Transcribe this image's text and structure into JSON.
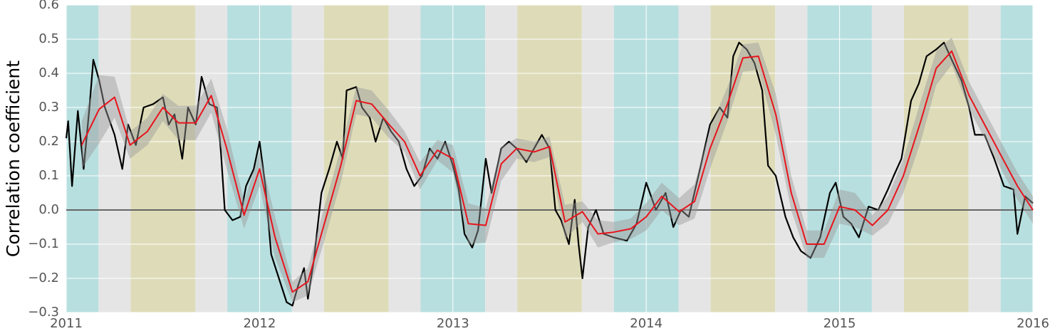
{
  "chart_data": {
    "type": "line",
    "y_label": "Correlation coefficient",
    "xlim": [
      2011,
      2016
    ],
    "xticks": [
      2011,
      2012,
      2013,
      2014,
      2015,
      2016
    ],
    "ylim": [
      -0.3,
      0.6
    ],
    "yticks": [
      {
        "value": -0.3,
        "label": "−0.3"
      },
      {
        "value": -0.2,
        "label": "−0.2"
      },
      {
        "value": -0.1,
        "label": "−0.1"
      },
      {
        "value": 0,
        "label": "0.0"
      },
      {
        "value": 0.1,
        "label": "0.1"
      },
      {
        "value": 0.2,
        "label": "0.2"
      },
      {
        "value": 0.3,
        "label": "0.3"
      },
      {
        "value": 0.4,
        "label": "0.4"
      },
      {
        "value": 0.5,
        "label": "0.5"
      },
      {
        "value": 0.6,
        "label": "0.6"
      }
    ],
    "grid": true,
    "reference_line": 0,
    "bands": [
      {
        "start": 2011,
        "end": 2011.167,
        "color": "#b8dfdf"
      },
      {
        "start": 2011.167,
        "end": 2011.333,
        "color": "#e5e5e5"
      },
      {
        "start": 2011.333,
        "end": 2011.667,
        "color": "#dedcb8"
      },
      {
        "start": 2011.667,
        "end": 2011.833,
        "color": "#e5e5e5"
      },
      {
        "start": 2011.833,
        "end": 2012.167,
        "color": "#b8dfdf"
      },
      {
        "start": 2012.167,
        "end": 2012.333,
        "color": "#e5e5e5"
      },
      {
        "start": 2012.333,
        "end": 2012.667,
        "color": "#dedcb8"
      },
      {
        "start": 2012.667,
        "end": 2012.833,
        "color": "#e5e5e5"
      },
      {
        "start": 2012.833,
        "end": 2013.167,
        "color": "#b8dfdf"
      },
      {
        "start": 2013.167,
        "end": 2013.333,
        "color": "#e5e5e5"
      },
      {
        "start": 2013.333,
        "end": 2013.667,
        "color": "#dedcb8"
      },
      {
        "start": 2013.667,
        "end": 2013.833,
        "color": "#e5e5e5"
      },
      {
        "start": 2013.833,
        "end": 2014.167,
        "color": "#b8dfdf"
      },
      {
        "start": 2014.167,
        "end": 2014.333,
        "color": "#e5e5e5"
      },
      {
        "start": 2014.333,
        "end": 2014.667,
        "color": "#dedcb8"
      },
      {
        "start": 2014.667,
        "end": 2014.833,
        "color": "#e5e5e5"
      },
      {
        "start": 2014.833,
        "end": 2015.167,
        "color": "#b8dfdf"
      },
      {
        "start": 2015.167,
        "end": 2015.333,
        "color": "#e5e5e5"
      },
      {
        "start": 2015.333,
        "end": 2015.667,
        "color": "#dedcb8"
      },
      {
        "start": 2015.667,
        "end": 2015.833,
        "color": "#e5e5e5"
      },
      {
        "start": 2015.833,
        "end": 2016,
        "color": "#b8dfdf"
      }
    ],
    "series": [
      {
        "color": "#000000",
        "x": [
          2011,
          2011.01,
          2011.03,
          2011.06,
          2011.09,
          2011.12,
          2011.14,
          2011.17,
          2011.2,
          2011.25,
          2011.29,
          2011.32,
          2011.36,
          2011.4,
          2011.45,
          2011.5,
          2011.53,
          2011.56,
          2011.6,
          2011.63,
          2011.67,
          2011.7,
          2011.74,
          2011.78,
          2011.8,
          2011.82,
          2011.86,
          2011.9,
          2011.93,
          2011.97,
          2012,
          2012.03,
          2012.06,
          2012.1,
          2012.14,
          2012.17,
          2012.2,
          2012.23,
          2012.25,
          2012.28,
          2012.32,
          2012.36,
          2012.4,
          2012.43,
          2012.45,
          2012.5,
          2012.53,
          2012.57,
          2012.6,
          2012.64,
          2012.68,
          2012.72,
          2012.76,
          2012.8,
          2012.84,
          2012.88,
          2012.92,
          2012.96,
          2013,
          2013.03,
          2013.06,
          2013.1,
          2013.13,
          2013.17,
          2013.2,
          2013.25,
          2013.29,
          2013.33,
          2013.38,
          2013.42,
          2013.46,
          2013.5,
          2013.53,
          2013.56,
          2013.6,
          2013.63,
          2013.65,
          2013.67,
          2013.7,
          2013.74,
          2013.78,
          2013.83,
          2013.9,
          2013.95,
          2014,
          2014.05,
          2014.1,
          2014.14,
          2014.18,
          2014.22,
          2014.27,
          2014.33,
          2014.38,
          2014.42,
          2014.45,
          2014.48,
          2014.52,
          2014.56,
          2014.6,
          2014.63,
          2014.67,
          2014.72,
          2014.76,
          2014.8,
          2014.85,
          2014.9,
          2014.95,
          2014.98,
          2015.02,
          2015.06,
          2015.1,
          2015.15,
          2015.2,
          2015.25,
          2015.28,
          2015.32,
          2015.37,
          2015.41,
          2015.45,
          2015.5,
          2015.54,
          2015.58,
          2015.63,
          2015.67,
          2015.7,
          2015.75,
          2015.8,
          2015.85,
          2015.9,
          2015.92,
          2015.96,
          2016
        ],
        "values": [
          0.21,
          0.26,
          0.07,
          0.29,
          0.12,
          0.3,
          0.44,
          0.38,
          0.3,
          0.22,
          0.12,
          0.25,
          0.19,
          0.3,
          0.31,
          0.33,
          0.25,
          0.28,
          0.15,
          0.3,
          0.25,
          0.39,
          0.31,
          0.3,
          0.17,
          0,
          -0.03,
          -0.02,
          0.07,
          0.12,
          0.2,
          0.07,
          -0.13,
          -0.2,
          -0.27,
          -0.28,
          -0.22,
          -0.17,
          -0.26,
          -0.15,
          0.05,
          0.12,
          0.2,
          0.15,
          0.35,
          0.36,
          0.3,
          0.27,
          0.2,
          0.27,
          0.23,
          0.2,
          0.12,
          0.07,
          0.1,
          0.18,
          0.15,
          0.2,
          0.13,
          0.06,
          -0.07,
          -0.11,
          -0.06,
          0.15,
          0.05,
          0.18,
          0.2,
          0.18,
          0.14,
          0.18,
          0.22,
          0.18,
          0,
          -0.03,
          -0.1,
          0.03,
          -0.1,
          -0.2,
          -0.05,
          0,
          -0.07,
          -0.08,
          -0.09,
          -0.04,
          0.08,
          0,
          0.05,
          -0.05,
          0,
          -0.02,
          0.1,
          0.25,
          0.3,
          0.27,
          0.45,
          0.49,
          0.47,
          0.43,
          0.35,
          0.13,
          0.1,
          -0.02,
          -0.08,
          -0.12,
          -0.14,
          -0.08,
          0.05,
          0.08,
          -0.02,
          -0.04,
          -0.08,
          0.01,
          0,
          0.06,
          0.1,
          0.15,
          0.32,
          0.37,
          0.45,
          0.47,
          0.49,
          0.44,
          0.38,
          0.3,
          0.22,
          0.22,
          0.15,
          0.07,
          0.06,
          -0.07,
          0.04,
          0.02
        ]
      },
      {
        "color": "#e8141c",
        "band_color": "#999999",
        "x": [
          2011.08,
          2011.17,
          2011.25,
          2011.33,
          2011.42,
          2011.5,
          2011.58,
          2011.67,
          2011.75,
          2011.83,
          2011.92,
          2012,
          2012.08,
          2012.17,
          2012.25,
          2012.33,
          2012.42,
          2012.5,
          2012.58,
          2012.67,
          2012.75,
          2012.83,
          2012.92,
          2013,
          2013.08,
          2013.17,
          2013.25,
          2013.33,
          2013.42,
          2013.5,
          2013.58,
          2013.67,
          2013.75,
          2013.83,
          2013.92,
          2014,
          2014.08,
          2014.17,
          2014.25,
          2014.33,
          2014.42,
          2014.5,
          2014.58,
          2014.67,
          2014.75,
          2014.83,
          2014.92,
          2015,
          2015.08,
          2015.17,
          2015.25,
          2015.33,
          2015.42,
          2015.5,
          2015.58,
          2015.67,
          2015.75,
          2015.83,
          2015.92,
          2016
        ],
        "values": [
          0.19,
          0.295,
          0.33,
          0.19,
          0.23,
          0.3,
          0.255,
          0.255,
          0.335,
          0.18,
          -0.015,
          0.12,
          -0.08,
          -0.24,
          -0.21,
          -0.05,
          0.13,
          0.32,
          0.31,
          0.25,
          0.2,
          0.1,
          0.175,
          0.15,
          -0.04,
          -0.045,
          0.135,
          0.18,
          0.17,
          0.185,
          -0.035,
          -0.005,
          -0.07,
          -0.065,
          -0.055,
          -0.02,
          0.04,
          -0.005,
          0.025,
          0.18,
          0.31,
          0.445,
          0.45,
          0.28,
          0.05,
          -0.1,
          -0.1,
          0.01,
          0,
          -0.045,
          0,
          0.1,
          0.26,
          0.415,
          0.465,
          0.335,
          0.25,
          0.165,
          0.07,
          0
        ],
        "error": [
          0.07,
          0.1,
          0.06,
          0.04,
          0.04,
          0.04,
          0.05,
          0.05,
          0.05,
          0.06,
          0.04,
          0.05,
          0.06,
          0.03,
          0.04,
          0.05,
          0.05,
          0.04,
          0.04,
          0.04,
          0.03,
          0.04,
          0.03,
          0.04,
          0.06,
          0.05,
          0.05,
          0.03,
          0.03,
          0.03,
          0.05,
          0.03,
          0.04,
          0.03,
          0.03,
          0.04,
          0.04,
          0.04,
          0.05,
          0.06,
          0.05,
          0.04,
          0.04,
          0.06,
          0.05,
          0.04,
          0.04,
          0.05,
          0.05,
          0.03,
          0.04,
          0.05,
          0.06,
          0.05,
          0.04,
          0.04,
          0.04,
          0.04,
          0.04,
          0.04
        ]
      }
    ]
  }
}
